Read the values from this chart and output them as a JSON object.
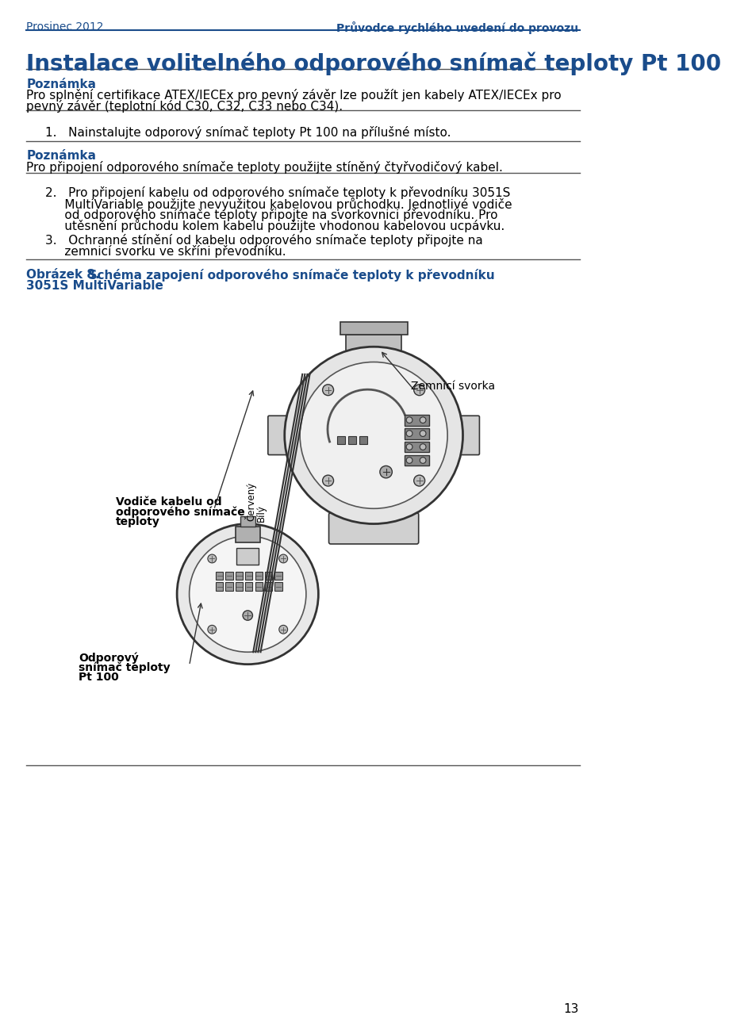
{
  "bg_color": "#ffffff",
  "header_left": "Prosinec 2012",
  "header_right": "Průvodce rychlého uvedení do provozu",
  "blue_color": "#1a4c8b",
  "text_color": "#000000",
  "dark_color": "#333333",
  "page_title": "Instalace volitelného odporového snímač teploty Pt 100",
  "note1_title": "Poznámka",
  "note1_line1": "Pro splnění certifikace ATEX/IECEx pro pevný závěr lze použít jen kabely ATEX/IECEx pro",
  "note1_line2": "pevný závěr (teplotní kód C30, C32, C33 nebo C34).",
  "step1": "1.   Nainstalujte odporový snímač teploty Pt 100 na přílušné místo.",
  "note2_title": "Poznámka",
  "note2_body": "Pro připojení odporového snímače teploty použijte stíněný čtyřvodičový kabel.",
  "step2_line1": "2.   Pro připojení kabelu od odporového snímače teploty k převodníku 3051S",
  "step2_line2": "     MultiVariable použijte nevyužitou kabelovou průchodku. Jednotlivé vodiče",
  "step2_line3": "     od odporového snímače teploty připojte na svorkovnici převodníku. Pro",
  "step2_line4": "     utěsnění průchodu kolem kabelu použijte vhodonou kabelovou ucpávku.",
  "step3_line1": "3.   Ochranné stínění od kabelu odporového snímače teploty připojte na",
  "step3_line2": "     zemnicí svorku ve skříni převodníku.",
  "fig_label1": "Obrázek 8.",
  "fig_label2": "  Schéma zapojení odporového snímače teploty k převodníku",
  "fig_label3": "3051S MultiVariable",
  "label_earth": "Zemnicí svorka",
  "label_wires": "Vodiče kabelu od\nodporového snímače\nteploty",
  "label_cerveny": "Červený",
  "label_bily": "Bílý",
  "label_sensor": "Odporový\nsnímač teploty\nPt 100",
  "page_number": "13"
}
